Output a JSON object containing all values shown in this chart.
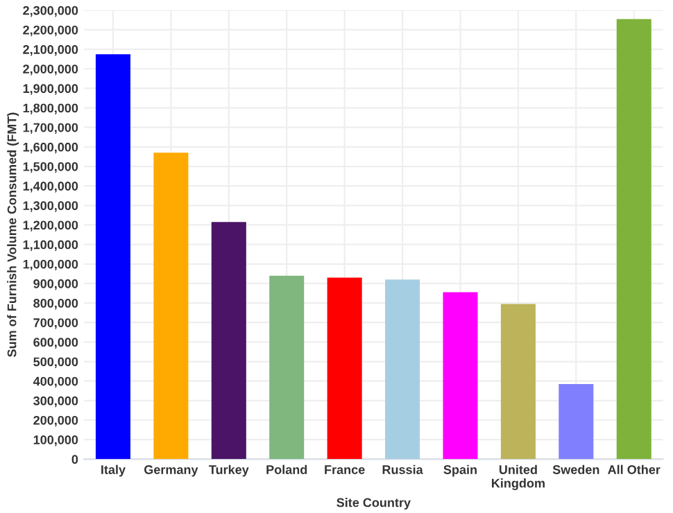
{
  "chart_data": {
    "type": "bar",
    "xlabel": "Site Country",
    "ylabel": "Sum of Furnish Volume Consumed (FMT)",
    "categories": [
      "Italy",
      "Germany",
      "Turkey",
      "Poland",
      "France",
      "Russia",
      "Spain",
      "United\nKingdom",
      "Sweden",
      "All Other"
    ],
    "values": [
      2075000,
      1570000,
      1215000,
      940000,
      930000,
      920000,
      855000,
      795000,
      385000,
      2255000
    ],
    "colors": [
      "#0000ff",
      "#ffaa00",
      "#4b1466",
      "#7fb77e",
      "#ff0000",
      "#a6cee3",
      "#ff00ff",
      "#bcb35a",
      "#8080ff",
      "#7fb23a"
    ],
    "ylim": [
      0,
      2300000
    ],
    "yticks": [
      {
        "value": 0,
        "label": "0"
      },
      {
        "value": 100000,
        "label": "100,000"
      },
      {
        "value": 200000,
        "label": "200,000"
      },
      {
        "value": 300000,
        "label": "300,000"
      },
      {
        "value": 400000,
        "label": "400,000"
      },
      {
        "value": 500000,
        "label": "500,000"
      },
      {
        "value": 600000,
        "label": "600,000"
      },
      {
        "value": 700000,
        "label": "700,000"
      },
      {
        "value": 800000,
        "label": "800,000"
      },
      {
        "value": 900000,
        "label": "900,000"
      },
      {
        "value": 1000000,
        "label": "1,000,000"
      },
      {
        "value": 1100000,
        "label": "1,100,000"
      },
      {
        "value": 1200000,
        "label": "1,200,000"
      },
      {
        "value": 1300000,
        "label": "1,300,000"
      },
      {
        "value": 1400000,
        "label": "1,400,000"
      },
      {
        "value": 1500000,
        "label": "1,500,000"
      },
      {
        "value": 1600000,
        "label": "1,600,000"
      },
      {
        "value": 1700000,
        "label": "1,700,000"
      },
      {
        "value": 1800000,
        "label": "1,800,000"
      },
      {
        "value": 1900000,
        "label": "1,900,000"
      },
      {
        "value": 2000000,
        "label": "2,000,000"
      },
      {
        "value": 2100000,
        "label": "2,100,000"
      },
      {
        "value": 2200000,
        "label": "2,200,000"
      },
      {
        "value": 2300000,
        "label": "2,300,000"
      }
    ],
    "grid": true
  }
}
